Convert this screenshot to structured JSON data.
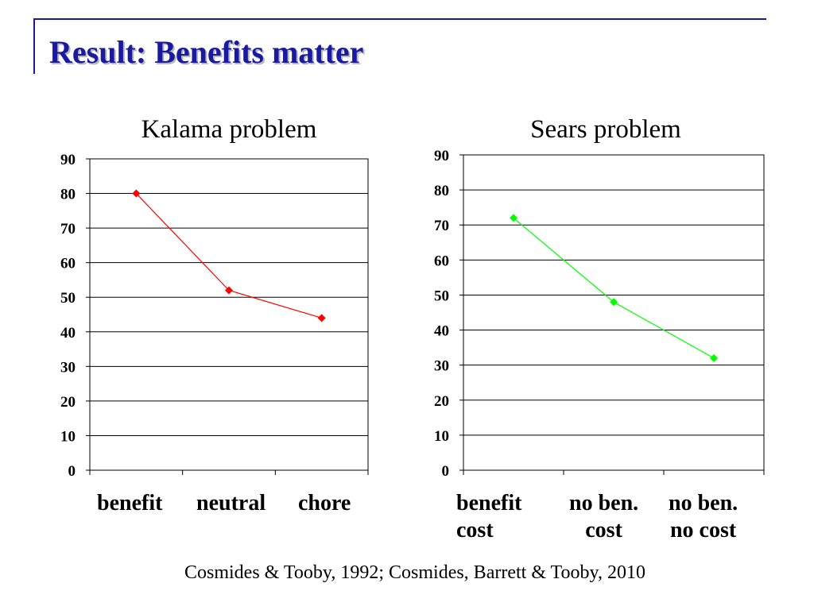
{
  "slide": {
    "title": "Result: Benefits matter",
    "citation": "Cosmides & Tooby, 1992; Cosmides, Barrett & Tooby, 2010",
    "accent_color": "#1a1aa0"
  },
  "chart_data": [
    {
      "type": "line",
      "title": "Kalama problem",
      "categories": [
        "benefit",
        "neutral",
        "chore"
      ],
      "series": [
        {
          "values": [
            80,
            52,
            44
          ],
          "color": "#ff0000"
        }
      ],
      "ylim": [
        0,
        90
      ],
      "yticks": [
        "0",
        "10",
        "20",
        "30",
        "40",
        "50",
        "60",
        "70",
        "80",
        "90"
      ],
      "grid": true,
      "marker": "diamond"
    },
    {
      "type": "line",
      "title": "Sears problem",
      "categories": [
        "benefit\ncost",
        "no ben.\ncost",
        "no ben.\nno cost"
      ],
      "series": [
        {
          "values": [
            72,
            48,
            32
          ],
          "color": "#00ff00"
        }
      ],
      "ylim": [
        0,
        90
      ],
      "yticks": [
        "0",
        "10",
        "20",
        "30",
        "40",
        "50",
        "60",
        "70",
        "80",
        "90"
      ],
      "grid": true,
      "marker": "diamond"
    }
  ]
}
